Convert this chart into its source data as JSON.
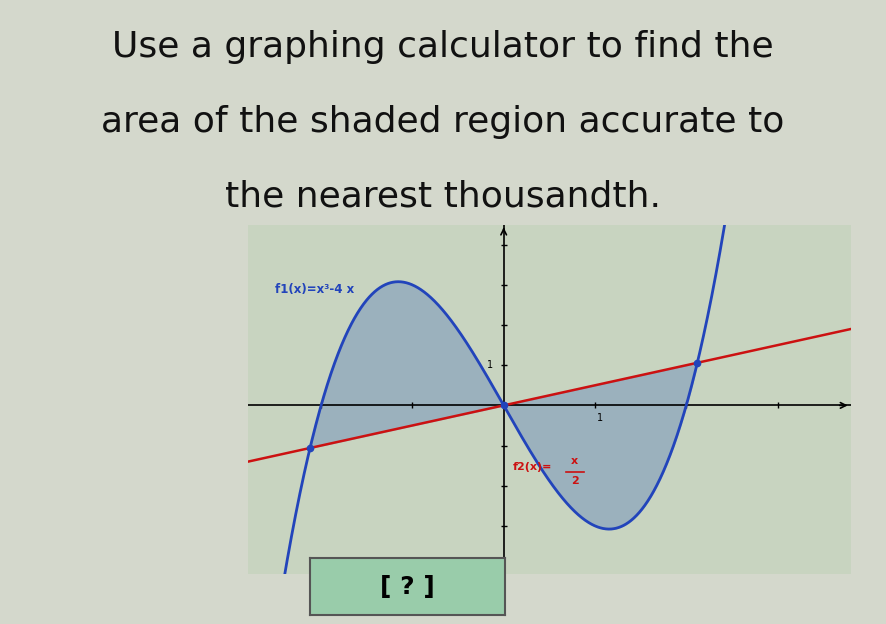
{
  "title_lines": [
    "Use a graphing calculator to find the",
    "area of the shaded region accurate to",
    "the nearest thousandth."
  ],
  "title_fontsize": 26,
  "f1_label": "f1(x)=x³-4 x",
  "f2_label_main": "f2(x)=",
  "f2_label_num": "x",
  "f2_label_den": "2",
  "answer_label": "[ ? ]",
  "bg_color": "#d4d8cc",
  "graph_bg": "#c8d4c0",
  "title_color": "#111111",
  "curve_color": "#2244bb",
  "line_color": "#cc1111",
  "shade_color": "#6688bb",
  "shade_alpha": 0.45,
  "ans_bg_color": "#99ccaa",
  "xlim": [
    -2.8,
    3.8
  ],
  "ylim": [
    -4.2,
    4.5
  ],
  "figsize": [
    8.86,
    6.24
  ],
  "dpi": 100
}
